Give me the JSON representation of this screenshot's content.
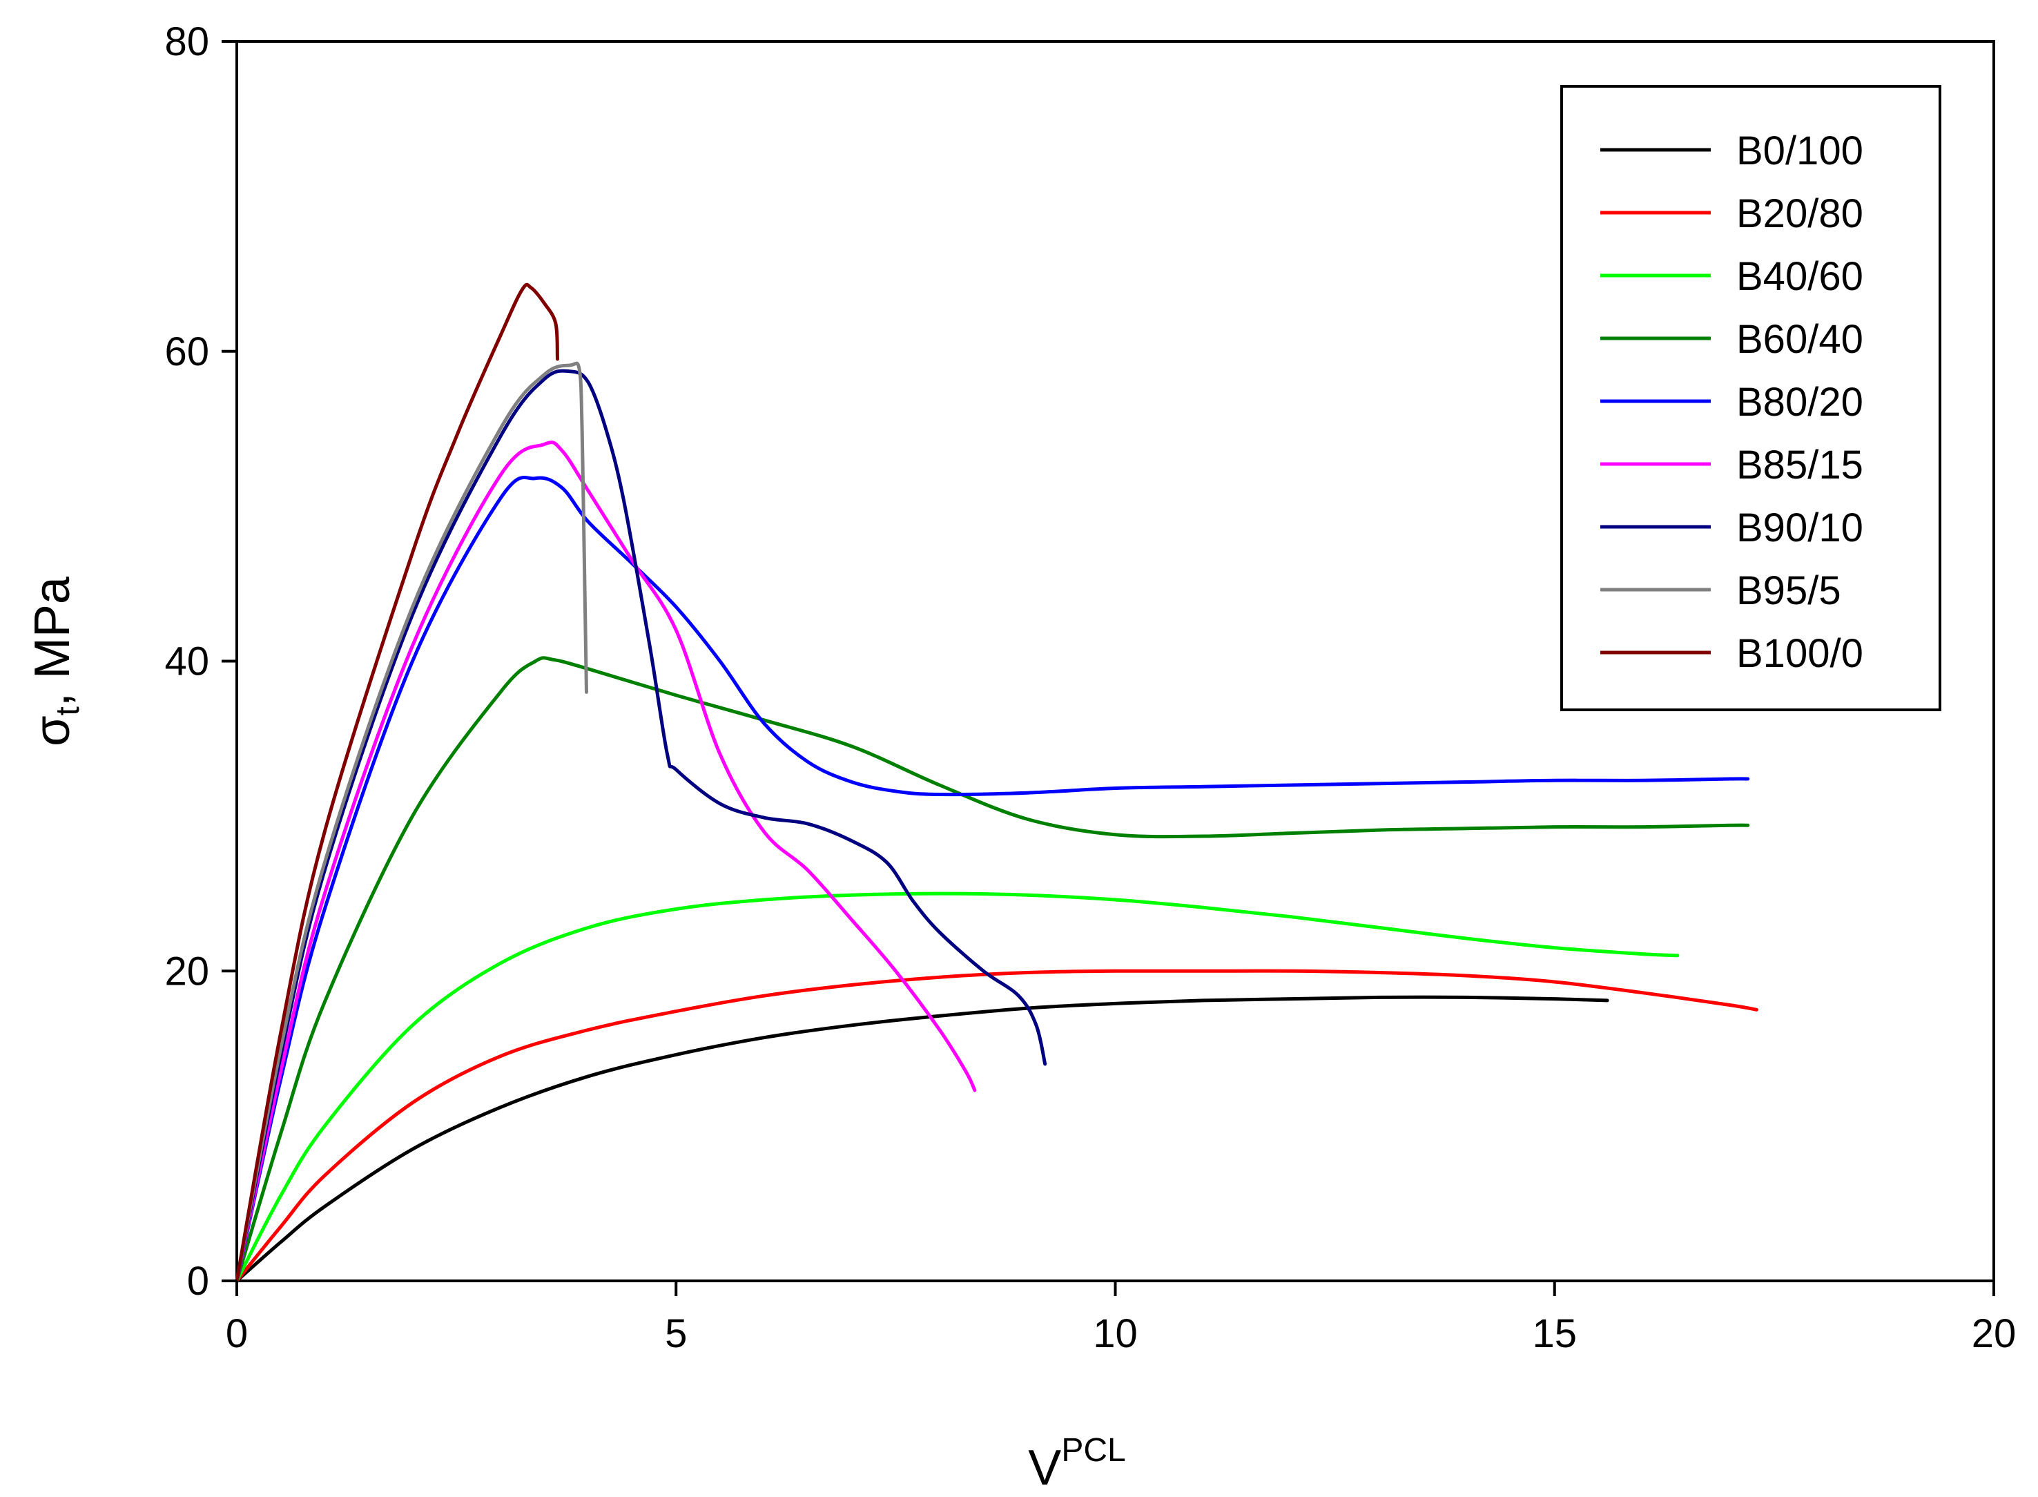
{
  "chart_data": {
    "type": "line",
    "title": "",
    "xlabel": {
      "main": "V",
      "sup": "PCL"
    },
    "ylabel": {
      "main": "σ",
      "sub": "t",
      "rest": ", MPa"
    },
    "xlim": [
      0,
      20
    ],
    "ylim": [
      0,
      80
    ],
    "xticks": [
      0,
      5,
      10,
      15,
      20
    ],
    "yticks": [
      0,
      20,
      40,
      60,
      80
    ],
    "xtick_labels": [
      "0",
      "5",
      "10",
      "15",
      "20"
    ],
    "ytick_labels": [
      "0",
      "20",
      "40",
      "60",
      "80"
    ],
    "grid": false,
    "legend_position": "top-right",
    "series": [
      {
        "name": "B0/100",
        "color": "#000000",
        "points": [
          [
            0,
            0
          ],
          [
            0.5,
            2.5
          ],
          [
            1,
            4.8
          ],
          [
            2,
            8.5
          ],
          [
            3,
            11.2
          ],
          [
            4,
            13.2
          ],
          [
            5,
            14.6
          ],
          [
            6,
            15.7
          ],
          [
            7,
            16.5
          ],
          [
            8,
            17.1
          ],
          [
            9,
            17.6
          ],
          [
            10,
            17.9
          ],
          [
            11,
            18.1
          ],
          [
            12,
            18.2
          ],
          [
            13,
            18.3
          ],
          [
            14,
            18.3
          ],
          [
            15,
            18.2
          ],
          [
            15.6,
            18.1
          ]
        ]
      },
      {
        "name": "B20/80",
        "color": "#ff0000",
        "points": [
          [
            0,
            0
          ],
          [
            0.5,
            3.5
          ],
          [
            1,
            6.8
          ],
          [
            2,
            11.5
          ],
          [
            3,
            14.5
          ],
          [
            4,
            16.2
          ],
          [
            5,
            17.4
          ],
          [
            6,
            18.4
          ],
          [
            7,
            19.1
          ],
          [
            8,
            19.6
          ],
          [
            9,
            19.9
          ],
          [
            10,
            20.0
          ],
          [
            11,
            20.0
          ],
          [
            12,
            20.0
          ],
          [
            13,
            19.9
          ],
          [
            14,
            19.7
          ],
          [
            15,
            19.3
          ],
          [
            16,
            18.6
          ],
          [
            17,
            17.8
          ],
          [
            17.3,
            17.5
          ]
        ]
      },
      {
        "name": "B40/60",
        "color": "#00ff00",
        "points": [
          [
            0,
            0
          ],
          [
            0.5,
            5.5
          ],
          [
            1,
            10
          ],
          [
            2,
            16.5
          ],
          [
            3,
            20.5
          ],
          [
            4,
            22.8
          ],
          [
            5,
            24.0
          ],
          [
            6,
            24.6
          ],
          [
            7,
            24.9
          ],
          [
            8,
            25.0
          ],
          [
            9,
            24.9
          ],
          [
            10,
            24.6
          ],
          [
            11,
            24.1
          ],
          [
            12,
            23.5
          ],
          [
            13,
            22.8
          ],
          [
            14,
            22.1
          ],
          [
            15,
            21.5
          ],
          [
            16,
            21.1
          ],
          [
            16.4,
            21.0
          ]
        ]
      },
      {
        "name": "B60/40",
        "color": "#008000",
        "points": [
          [
            0,
            0
          ],
          [
            0.5,
            9.5
          ],
          [
            1,
            18
          ],
          [
            2,
            30
          ],
          [
            3,
            38
          ],
          [
            3.4,
            40
          ],
          [
            3.6,
            40.1
          ],
          [
            4,
            39.5
          ],
          [
            5,
            37.8
          ],
          [
            6,
            36.2
          ],
          [
            7,
            34.5
          ],
          [
            8,
            32
          ],
          [
            9,
            29.8
          ],
          [
            10,
            28.8
          ],
          [
            11,
            28.7
          ],
          [
            12,
            28.9
          ],
          [
            13,
            29.1
          ],
          [
            14,
            29.2
          ],
          [
            15,
            29.3
          ],
          [
            16,
            29.3
          ],
          [
            17,
            29.4
          ],
          [
            17.2,
            29.4
          ]
        ]
      },
      {
        "name": "B80/20",
        "color": "#0000ff",
        "points": [
          [
            0,
            0
          ],
          [
            0.5,
            13
          ],
          [
            1,
            24
          ],
          [
            2,
            40
          ],
          [
            3,
            50.5
          ],
          [
            3.4,
            51.8
          ],
          [
            3.7,
            51.2
          ],
          [
            4,
            49
          ],
          [
            4.5,
            46.3
          ],
          [
            5,
            43.5
          ],
          [
            5.5,
            40
          ],
          [
            6,
            36
          ],
          [
            6.5,
            33.5
          ],
          [
            7,
            32.2
          ],
          [
            7.5,
            31.6
          ],
          [
            8,
            31.4
          ],
          [
            9,
            31.5
          ],
          [
            10,
            31.8
          ],
          [
            11,
            31.9
          ],
          [
            12,
            32.0
          ],
          [
            13,
            32.1
          ],
          [
            14,
            32.2
          ],
          [
            15,
            32.3
          ],
          [
            16,
            32.3
          ],
          [
            17,
            32.4
          ],
          [
            17.2,
            32.4
          ]
        ]
      },
      {
        "name": "B85/15",
        "color": "#ff00ff",
        "points": [
          [
            0,
            0
          ],
          [
            0.5,
            13.5
          ],
          [
            1,
            25
          ],
          [
            2,
            41
          ],
          [
            3,
            52
          ],
          [
            3.5,
            54
          ],
          [
            3.7,
            53.6
          ],
          [
            4,
            51
          ],
          [
            4.5,
            46.5
          ],
          [
            5,
            42
          ],
          [
            5.5,
            34
          ],
          [
            6,
            29
          ],
          [
            6.5,
            26.5
          ],
          [
            7,
            23.3
          ],
          [
            7.5,
            20
          ],
          [
            8,
            16.2
          ],
          [
            8.3,
            13.5
          ],
          [
            8.4,
            12.3
          ]
        ]
      },
      {
        "name": "B90/10",
        "color": "#000080",
        "points": [
          [
            0,
            0
          ],
          [
            0.5,
            14.5
          ],
          [
            1,
            26.5
          ],
          [
            2,
            43
          ],
          [
            3,
            54.5
          ],
          [
            3.5,
            58.2
          ],
          [
            3.8,
            58.7
          ],
          [
            4,
            58
          ],
          [
            4.2,
            55
          ],
          [
            4.4,
            50.5
          ],
          [
            4.7,
            41
          ],
          [
            4.9,
            34
          ],
          [
            5,
            33
          ],
          [
            5.5,
            30.8
          ],
          [
            6,
            29.9
          ],
          [
            6.5,
            29.5
          ],
          [
            7,
            28.4
          ],
          [
            7.4,
            27
          ],
          [
            7.7,
            24.5
          ],
          [
            8,
            22.5
          ],
          [
            8.5,
            20
          ],
          [
            8.9,
            18.4
          ],
          [
            9.1,
            16.5
          ],
          [
            9.2,
            14
          ]
        ]
      },
      {
        "name": "B95/5",
        "color": "#808080",
        "points": [
          [
            0,
            0
          ],
          [
            0.5,
            15
          ],
          [
            1,
            27
          ],
          [
            2,
            43.5
          ],
          [
            3,
            55
          ],
          [
            3.5,
            58.5
          ],
          [
            3.8,
            59.1
          ],
          [
            3.9,
            58.8
          ],
          [
            3.93,
            55
          ],
          [
            3.96,
            45
          ],
          [
            3.98,
            38
          ]
        ]
      },
      {
        "name": "B100/0",
        "color": "#800000",
        "points": [
          [
            0,
            0
          ],
          [
            0.5,
            16
          ],
          [
            1,
            29
          ],
          [
            2,
            47
          ],
          [
            2.5,
            54.5
          ],
          [
            3,
            61
          ],
          [
            3.25,
            64
          ],
          [
            3.35,
            64.1
          ],
          [
            3.5,
            63.1
          ],
          [
            3.63,
            61.8
          ],
          [
            3.65,
            59.5
          ]
        ]
      }
    ]
  }
}
